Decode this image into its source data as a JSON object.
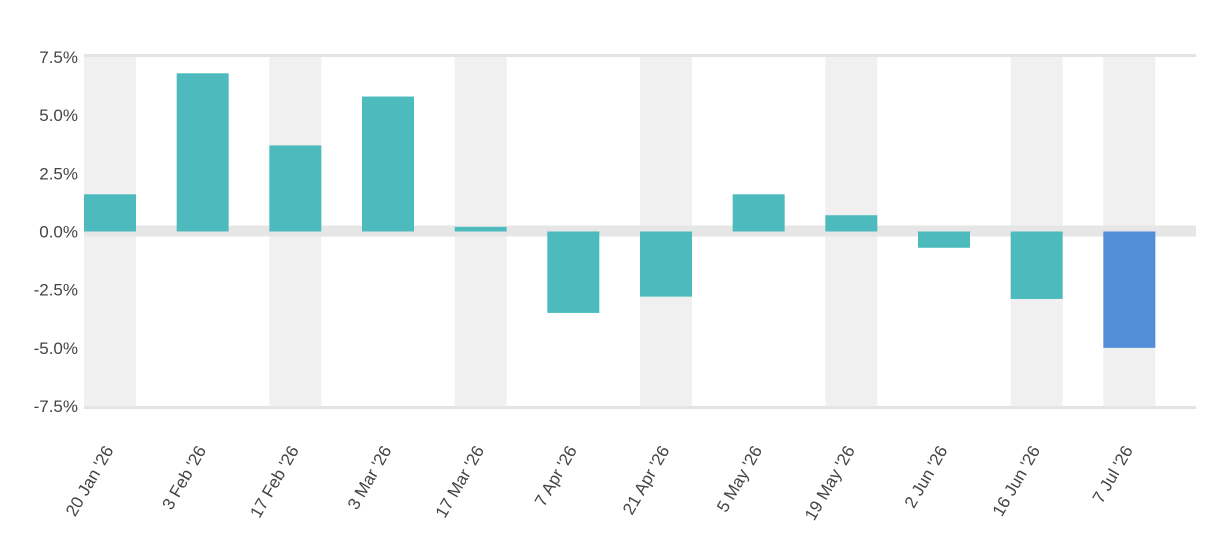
{
  "chart_data": {
    "type": "bar",
    "categories": [
      "20 Jan '26",
      "3 Feb '26",
      "17 Feb '26",
      "3 Mar '26",
      "17 Mar '26",
      "7 Apr '26",
      "21 Apr '26",
      "5 May '26",
      "19 May '26",
      "2 Jun '26",
      "16 Jun '26",
      "7 Jul '26"
    ],
    "values": [
      1.6,
      6.8,
      3.7,
      5.8,
      0.2,
      -3.5,
      -2.8,
      1.6,
      0.7,
      -0.7,
      -2.9,
      -5.0
    ],
    "yticks": [
      7.5,
      5.0,
      2.5,
      0.0,
      -2.5,
      -5.0,
      -7.5
    ],
    "ytick_labels": [
      "7.5%",
      "5.0%",
      "2.5%",
      "0.0%",
      "-2.5%",
      "-5.0%",
      "-7.5%"
    ],
    "ylim": [
      -7.5,
      7.5
    ],
    "title": "",
    "xlabel": "",
    "ylabel": "",
    "grid": "alternating vertical bands",
    "colors": {
      "bar": "#4dbbbd",
      "highlight_bar": "#528ed8",
      "band": "#f0f0f0",
      "axis": "#e4e4e4",
      "zero_line": "#e6e6e6",
      "text": "#444444"
    },
    "highlight_index": 11
  }
}
